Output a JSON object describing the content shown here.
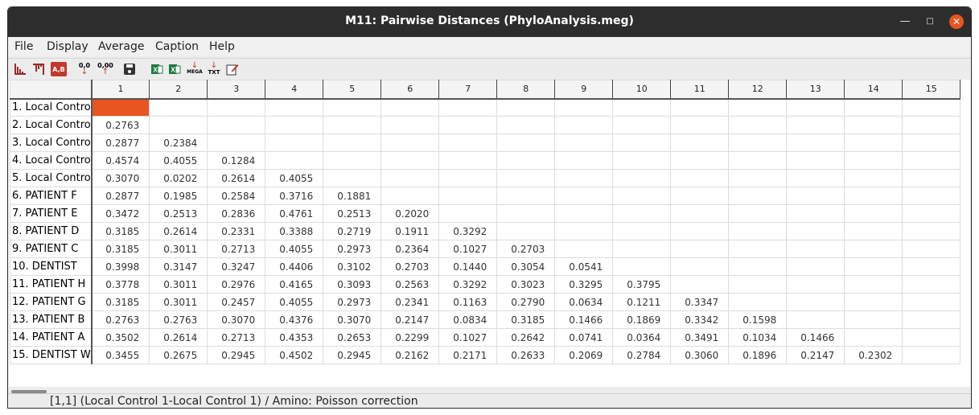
{
  "window": {
    "title": "M11: Pairwise Distances (PhyloAnalysis.meg)"
  },
  "menu": [
    "File",
    "Display",
    "Average",
    "Caption",
    "Help"
  ],
  "toolbar": {
    "ab_label": "A,B",
    "dec_down_label": "0,0",
    "dec_up_label": "0,00",
    "mega_label": "MEGA",
    "txt_label": "TXT"
  },
  "table": {
    "columns": [
      "1",
      "2",
      "3",
      "4",
      "5",
      "6",
      "7",
      "8",
      "9",
      "10",
      "11",
      "12",
      "13",
      "14",
      "15"
    ],
    "rows": [
      {
        "label": "1. Local Contro",
        "values": []
      },
      {
        "label": "2. Local Contro",
        "values": [
          "0.2763"
        ]
      },
      {
        "label": "3. Local Contro",
        "values": [
          "0.2877",
          "0.2384"
        ]
      },
      {
        "label": "4. Local Contro",
        "values": [
          "0.4574",
          "0.4055",
          "0.1284"
        ]
      },
      {
        "label": "5. Local Contro",
        "values": [
          "0.3070",
          "0.0202",
          "0.2614",
          "0.4055"
        ]
      },
      {
        "label": "6. PATIENT F",
        "values": [
          "0.2877",
          "0.1985",
          "0.2584",
          "0.3716",
          "0.1881"
        ]
      },
      {
        "label": "7. PATIENT E",
        "values": [
          "0.3472",
          "0.2513",
          "0.2836",
          "0.4761",
          "0.2513",
          "0.2020"
        ]
      },
      {
        "label": "8. PATIENT D",
        "values": [
          "0.3185",
          "0.2614",
          "0.2331",
          "0.3388",
          "0.2719",
          "0.1911",
          "0.3292"
        ]
      },
      {
        "label": "9. PATIENT C",
        "values": [
          "0.3185",
          "0.3011",
          "0.2713",
          "0.4055",
          "0.2973",
          "0.2364",
          "0.1027",
          "0.2703"
        ]
      },
      {
        "label": "10. DENTIST",
        "values": [
          "0.3998",
          "0.3147",
          "0.3247",
          "0.4406",
          "0.3102",
          "0.2703",
          "0.1440",
          "0.3054",
          "0.0541"
        ]
      },
      {
        "label": "11. PATIENT H",
        "values": [
          "0.3778",
          "0.3011",
          "0.2976",
          "0.4165",
          "0.3093",
          "0.2563",
          "0.3292",
          "0.3023",
          "0.3295",
          "0.3795"
        ]
      },
      {
        "label": "12. PATIENT G",
        "values": [
          "0.3185",
          "0.3011",
          "0.2457",
          "0.4055",
          "0.2973",
          "0.2341",
          "0.1163",
          "0.2790",
          "0.0634",
          "0.1211",
          "0.3347"
        ]
      },
      {
        "label": "13. PATIENT B",
        "values": [
          "0.2763",
          "0.2763",
          "0.3070",
          "0.4376",
          "0.3070",
          "0.2147",
          "0.0834",
          "0.3185",
          "0.1466",
          "0.1869",
          "0.3342",
          "0.1598"
        ]
      },
      {
        "label": "14. PATIENT A",
        "values": [
          "0.3502",
          "0.2614",
          "0.2713",
          "0.4353",
          "0.2653",
          "0.2299",
          "0.1027",
          "0.2642",
          "0.0741",
          "0.0364",
          "0.3491",
          "0.1034",
          "0.1466"
        ]
      },
      {
        "label": "15. DENTIST W",
        "values": [
          "0.3455",
          "0.2675",
          "0.2945",
          "0.4502",
          "0.2945",
          "0.2162",
          "0.2171",
          "0.2633",
          "0.2069",
          "0.2784",
          "0.3060",
          "0.1896",
          "0.2147",
          "0.2302"
        ]
      }
    ],
    "selected_cell": [
      1,
      1
    ],
    "selected_color": "#e95420"
  },
  "status": {
    "text": "[1,1] (Local Control 1-Local Control 1) / Amino: Poisson correction"
  },
  "colors": {
    "titlebar": "#2d2d2d",
    "close_button": "#e95420",
    "excel_green": "#1e7b3f"
  }
}
